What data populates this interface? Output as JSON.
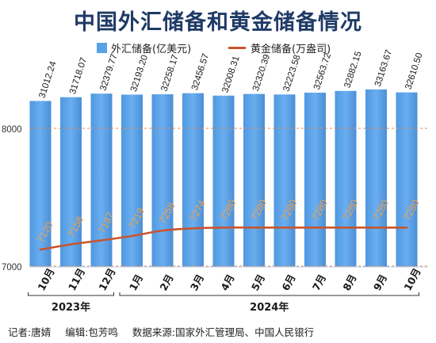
{
  "title": "中国外汇储备和黄金储备情况",
  "legend": {
    "bar_label": "外汇储备(亿美元)",
    "line_label": "黄金储备(万盎司)"
  },
  "colors": {
    "bar": "#5aa2e6",
    "line": "#c8552d",
    "title": "#1f3a66",
    "grid": "#e08a5a"
  },
  "footer": {
    "reporter": "记者:唐婧",
    "editor": "编辑:包芳鸣",
    "source": "数据来源:国家外汇管理局、中国人民银行"
  },
  "chart_data": {
    "type": "bar",
    "categories": [
      "10月",
      "11月",
      "12月",
      "1月",
      "2月",
      "3月",
      "4月",
      "5月",
      "6月",
      "7月",
      "8月",
      "9月",
      "10月"
    ],
    "year_groups": [
      {
        "label": "2023年",
        "start": 0,
        "end": 2
      },
      {
        "label": "2024年",
        "start": 3,
        "end": 12
      }
    ],
    "series": [
      {
        "name": "外汇储备(亿美元)",
        "kind": "bar",
        "values": [
          31012.24,
          31718.07,
          32379.77,
          32193.2,
          32258.17,
          32456.57,
          32008.31,
          32320.39,
          32223.58,
          32563.72,
          32882.15,
          33163.67,
          32610.5
        ],
        "labels": [
          "31012.24",
          "31718.07",
          "32379.77",
          "32193.20",
          "32258.17",
          "32456.57",
          "32008.31",
          "32320.39",
          "32223.58",
          "32563.72",
          "32882.15",
          "33163.67",
          "32610.50"
        ]
      },
      {
        "name": "黄金储备(万盎司)",
        "kind": "line",
        "values": [
          7120,
          7158,
          7187,
          7219,
          7258,
          7274,
          7280,
          7280,
          7280,
          7280,
          7280,
          7280,
          7280
        ],
        "labels": [
          "7120",
          "7158",
          "7187",
          "7219",
          "7258",
          "7274",
          "7280",
          "7280",
          "7280",
          "7280",
          "7280",
          "7280",
          "7280"
        ]
      }
    ],
    "gold_axis": {
      "ticks": [
        "7000",
        "8000"
      ],
      "range": [
        7000,
        8000
      ]
    },
    "bar_axis_range": [
      0,
      34200
    ],
    "grid": "dashed"
  }
}
